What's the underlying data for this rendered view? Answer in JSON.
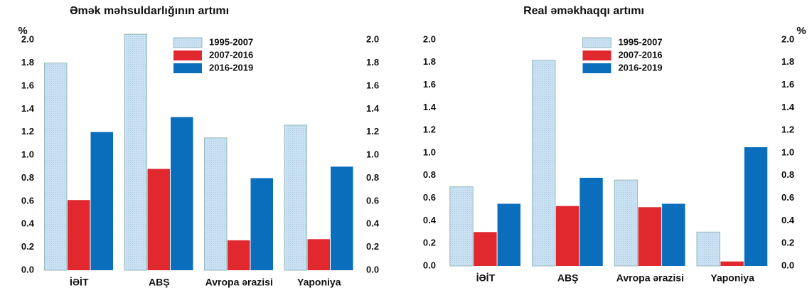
{
  "chart_data": [
    {
      "type": "bar",
      "title": "Əmək məhsuldarlığının artımı",
      "y_label": "%",
      "categories": [
        "İƏİT",
        "ABŞ",
        "Avropa ərazisi",
        "Yaponiya"
      ],
      "series": [
        {
          "name": "1995-2007",
          "color": "#c9e1f2",
          "values": [
            1.8,
            2.05,
            1.15,
            1.26
          ]
        },
        {
          "name": "2007-2016",
          "color": "#e0282e",
          "values": [
            0.61,
            0.88,
            0.26,
            0.27
          ]
        },
        {
          "name": "2016-2019",
          "color": "#0a6ebd",
          "values": [
            1.2,
            1.33,
            0.8,
            0.9
          ]
        }
      ],
      "ylim": [
        0,
        2.1
      ],
      "yticks": [
        {
          "value": 0,
          "label": "0.0"
        },
        {
          "value": 0.2,
          "label": "0.2"
        },
        {
          "value": 0.4,
          "label": "0.4"
        },
        {
          "value": 0.6,
          "label": "0.6"
        },
        {
          "value": 0.8,
          "label": "0.8"
        },
        {
          "value": 1,
          "label": "1.0"
        },
        {
          "value": 1.2,
          "label": "1.2"
        },
        {
          "value": 1.4,
          "label": "1.4"
        },
        {
          "value": 1.6,
          "label": "1.6"
        },
        {
          "value": 1.8,
          "label": "1.8"
        },
        {
          "value": 2,
          "label": "2.0"
        }
      ],
      "y2lim": [
        0,
        2.1
      ],
      "y2ticks": [
        {
          "value": 0,
          "label": "0.0"
        },
        {
          "value": 0.2,
          "label": "0.2"
        },
        {
          "value": 0.4,
          "label": "0.4"
        },
        {
          "value": 0.6,
          "label": "0.6"
        },
        {
          "value": 0.8,
          "label": "0.8"
        },
        {
          "value": 1,
          "label": "1.0"
        },
        {
          "value": 1.2,
          "label": "1.2"
        },
        {
          "value": 1.4,
          "label": "1.4"
        },
        {
          "value": 1.6,
          "label": "1.6"
        },
        {
          "value": 1.8,
          "label": "1.8"
        },
        {
          "value": 2,
          "label": "2.0"
        }
      ],
      "legend": "upper center"
    },
    {
      "type": "bar",
      "title": "Real əməkhaqqı artımı",
      "y_label": "%",
      "categories": [
        "İƏİT",
        "ABŞ",
        "Avropa ərazisi",
        "Yaponiya"
      ],
      "series": [
        {
          "name": "1995-2007",
          "color": "#c9e1f2",
          "values": [
            0.7,
            1.82,
            0.76,
            0.3
          ]
        },
        {
          "name": "2007-2016",
          "color": "#e0282e",
          "values": [
            0.3,
            0.53,
            0.52,
            0.04
          ]
        },
        {
          "name": "2016-2019",
          "color": "#0a6ebd",
          "values": [
            0.55,
            0.78,
            0.55,
            1.05
          ]
        }
      ],
      "ylim": [
        0,
        2.1
      ],
      "yticks": [
        {
          "value": 0,
          "label": "0.0"
        },
        {
          "value": 0.2,
          "label": "0.2"
        },
        {
          "value": 0.4,
          "label": "0.4"
        },
        {
          "value": 0.6,
          "label": "0.6"
        },
        {
          "value": 0.8,
          "label": "0.8"
        },
        {
          "value": 1,
          "label": "1.0"
        },
        {
          "value": 1.2,
          "label": "1.2"
        },
        {
          "value": 1.4,
          "label": "1.4"
        },
        {
          "value": 1.6,
          "label": "1.6"
        },
        {
          "value": 1.8,
          "label": "1.8"
        },
        {
          "value": 2,
          "label": "2.0"
        }
      ],
      "y2lim": [
        0,
        2.1
      ],
      "y2ticks": [
        {
          "value": 0,
          "label": "0.0"
        },
        {
          "value": 0.2,
          "label": "0.2"
        },
        {
          "value": 0.4,
          "label": "0.4"
        },
        {
          "value": 0.6,
          "label": "0.6"
        },
        {
          "value": 0.8,
          "label": "0.8"
        },
        {
          "value": 1,
          "label": "1.0"
        },
        {
          "value": 1.2,
          "label": "1.2"
        },
        {
          "value": 1.4,
          "label": "1.4"
        },
        {
          "value": 1.6,
          "label": "1.6"
        },
        {
          "value": 1.8,
          "label": "1.8"
        },
        {
          "value": 2,
          "label": "2.0"
        }
      ],
      "legend": "upper center"
    }
  ]
}
